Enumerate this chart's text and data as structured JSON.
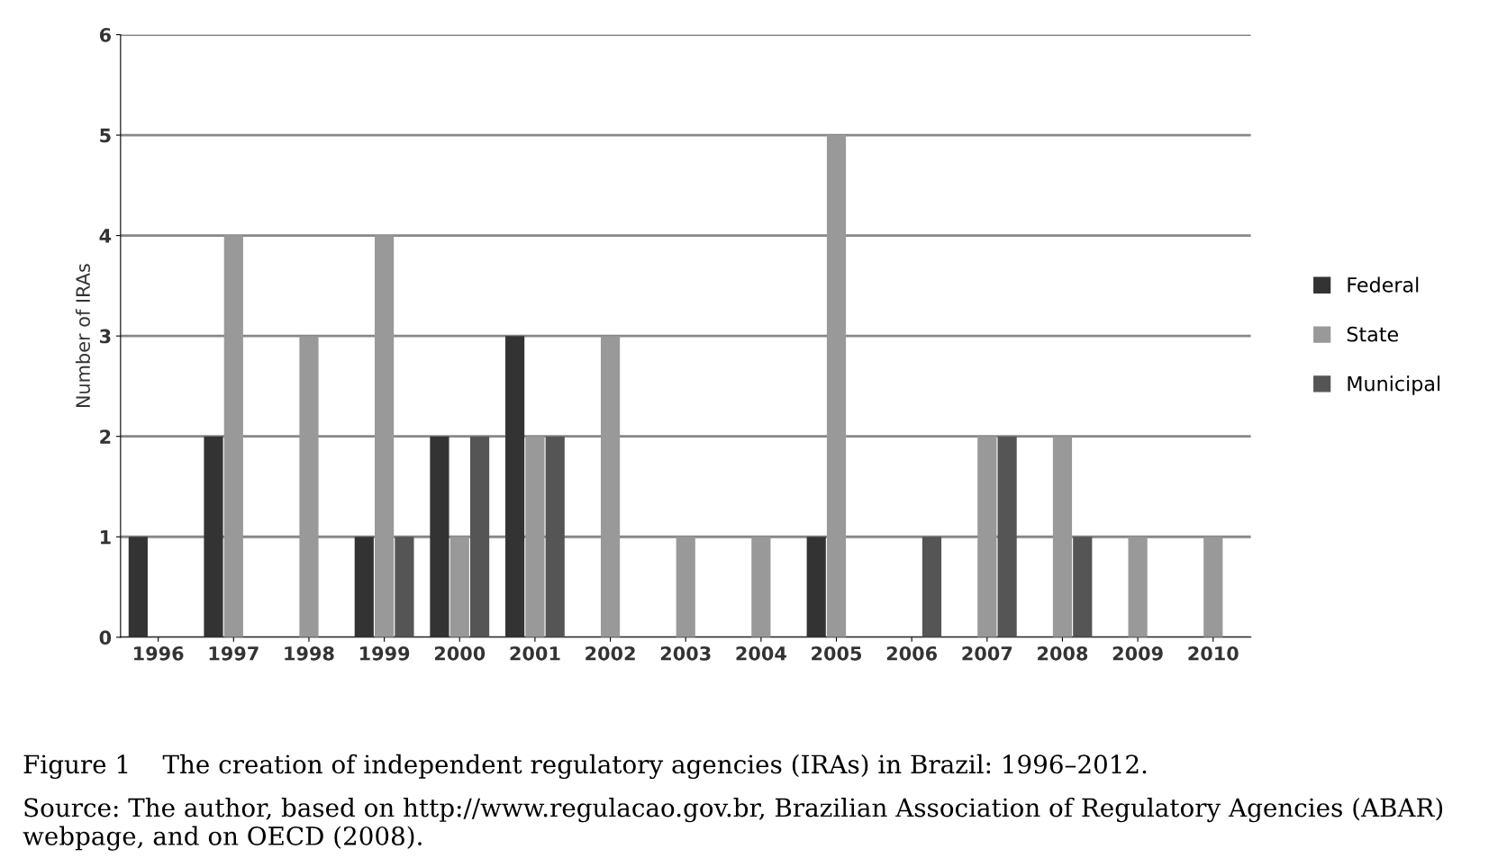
{
  "chart_data": {
    "type": "bar",
    "ylabel": "Number of IRAs",
    "categories": [
      "1996",
      "1997",
      "1998",
      "1999",
      "2000",
      "2001",
      "2002",
      "2003",
      "2004",
      "2005",
      "2006",
      "2007",
      "2008",
      "2009",
      "2010"
    ],
    "series": [
      {
        "name": "Federal",
        "color": "#333333",
        "values": [
          1,
          2,
          0,
          1,
          2,
          3,
          0,
          0,
          0,
          1,
          0,
          0,
          0,
          0,
          0
        ]
      },
      {
        "name": "State",
        "color": "#999999",
        "values": [
          0,
          4,
          3,
          4,
          1,
          2,
          3,
          1,
          1,
          5,
          0,
          2,
          2,
          1,
          1
        ]
      },
      {
        "name": "Municipal",
        "color": "#555555",
        "values": [
          0,
          0,
          0,
          1,
          2,
          2,
          0,
          0,
          0,
          0,
          1,
          2,
          1,
          0,
          0
        ]
      }
    ],
    "ylim": [
      0,
      6
    ],
    "yticks": [
      0,
      1,
      2,
      3,
      4,
      5,
      6
    ],
    "grid": "y",
    "legend": "right",
    "annotations": [
      "Figure 1    The creation of independent regulatory agencies (IRAs) in Brazil: 1996–2012.",
      "Source: The author, based on http://www.regulacao.gov.br, Brazilian Association of Regulatory Agencies (ABAR) webpage, and on OECD (2008)."
    ]
  }
}
